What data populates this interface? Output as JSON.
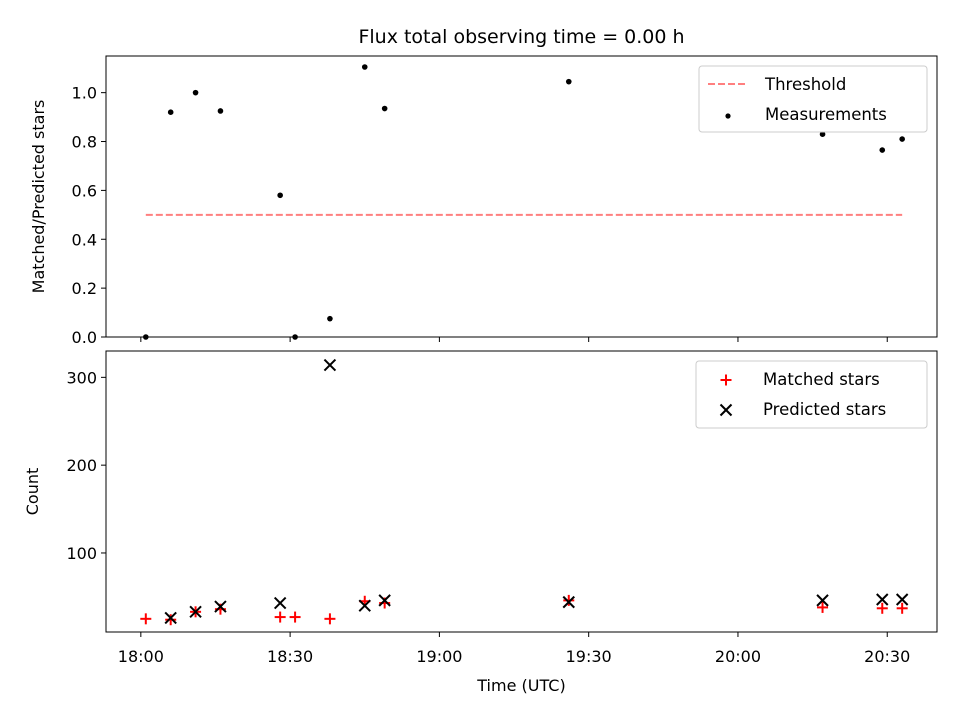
{
  "chart_data": [
    {
      "type": "scatter",
      "title": "Flux total observing time = 0.00 h",
      "ylabel": "Matched/Predicted stars",
      "xlabel": "",
      "xlim": [
        "17:53",
        "20:40"
      ],
      "ylim": [
        0,
        1.15
      ],
      "y_ticks": [
        "0.0",
        "0.2",
        "0.4",
        "0.6",
        "0.8",
        "1.0"
      ],
      "grid": false,
      "legend_position": "top-right",
      "threshold": {
        "name": "Threshold",
        "value": 0.5,
        "x_start": "18:01",
        "x_end": "20:33",
        "color": "#ff7f7f"
      },
      "series": [
        {
          "name": "Measurements",
          "color": "#000000",
          "points": [
            {
              "x": "18:01",
              "y": 0.0
            },
            {
              "x": "18:06",
              "y": 0.92
            },
            {
              "x": "18:11",
              "y": 1.0
            },
            {
              "x": "18:16",
              "y": 0.925
            },
            {
              "x": "18:28",
              "y": 0.58
            },
            {
              "x": "18:31",
              "y": 0.0
            },
            {
              "x": "18:38",
              "y": 0.075
            },
            {
              "x": "18:45",
              "y": 1.105
            },
            {
              "x": "18:49",
              "y": 0.935
            },
            {
              "x": "19:26",
              "y": 1.045
            },
            {
              "x": "20:17",
              "y": 0.83
            },
            {
              "x": "20:29",
              "y": 0.765
            },
            {
              "x": "20:33",
              "y": 0.81
            }
          ]
        }
      ]
    },
    {
      "type": "scatter",
      "title": "",
      "ylabel": "Count",
      "xlabel": "Time (UTC)",
      "xlim": [
        "17:53",
        "20:40"
      ],
      "ylim": [
        10,
        330
      ],
      "y_ticks": [
        "100",
        "200",
        "300"
      ],
      "x_ticks": [
        "18:00",
        "18:30",
        "19:00",
        "19:30",
        "20:00",
        "20:30"
      ],
      "grid": false,
      "legend_position": "top-right",
      "series": [
        {
          "name": "Matched stars",
          "marker": "plus",
          "color": "#ff0000",
          "points": [
            {
              "x": "18:01",
              "y": 25
            },
            {
              "x": "18:06",
              "y": 24
            },
            {
              "x": "18:11",
              "y": 33
            },
            {
              "x": "18:16",
              "y": 36
            },
            {
              "x": "18:28",
              "y": 27
            },
            {
              "x": "18:31",
              "y": 27
            },
            {
              "x": "18:38",
              "y": 25
            },
            {
              "x": "18:45",
              "y": 45
            },
            {
              "x": "18:49",
              "y": 43
            },
            {
              "x": "19:26",
              "y": 46
            },
            {
              "x": "20:17",
              "y": 38
            },
            {
              "x": "20:29",
              "y": 37
            },
            {
              "x": "20:33",
              "y": 37
            }
          ]
        },
        {
          "name": "Predicted stars",
          "marker": "x",
          "color": "#000000",
          "points": [
            {
              "x": "18:06",
              "y": 26
            },
            {
              "x": "18:11",
              "y": 33
            },
            {
              "x": "18:16",
              "y": 39
            },
            {
              "x": "18:28",
              "y": 43
            },
            {
              "x": "18:38",
              "y": 314
            },
            {
              "x": "18:45",
              "y": 40
            },
            {
              "x": "18:49",
              "y": 46
            },
            {
              "x": "19:26",
              "y": 44
            },
            {
              "x": "20:17",
              "y": 46
            },
            {
              "x": "20:29",
              "y": 47
            },
            {
              "x": "20:33",
              "y": 47
            }
          ]
        }
      ]
    }
  ]
}
